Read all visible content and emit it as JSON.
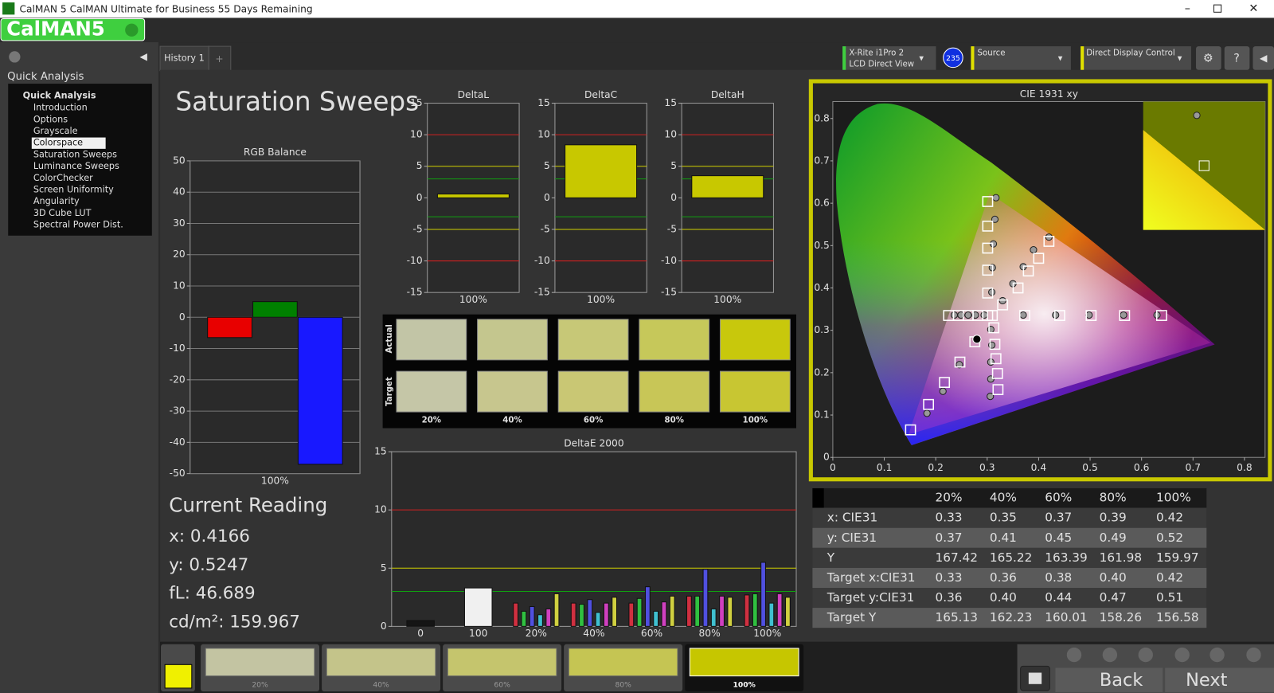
{
  "window": {
    "title": "CalMAN 5 CalMAN Ultimate for Business 55 Days Remaining",
    "logo": "CalMAN5"
  },
  "sidebar": {
    "header": "Quick Analysis",
    "root": "Quick Analysis",
    "selected": 3,
    "items": [
      "Introduction",
      "Options",
      "Grayscale",
      "Colorspace",
      "Saturation Sweeps",
      "Luminance Sweeps",
      "ColorChecker",
      "Screen Uniformity",
      "Angularity",
      "3D Cube LUT",
      "Spectral Power Dist."
    ]
  },
  "tabs": [
    "History 1",
    "+"
  ],
  "toolbar": {
    "meter": "X-Rite i1Pro 2",
    "mode": "LCD Direct View",
    "badge": "235",
    "source": "Source",
    "control": "Direct Display Control"
  },
  "page_title": "Saturation Sweeps",
  "chart_data": [
    {
      "type": "bar",
      "title": "RGB Balance",
      "categories": [
        "100%"
      ],
      "series": [
        {
          "color": "#e80000",
          "values": [
            -6.5
          ]
        },
        {
          "color": "#008000",
          "values": [
            5
          ]
        },
        {
          "color": "#1818ff",
          "values": [
            -47
          ]
        }
      ],
      "ylim": [
        -50,
        50
      ],
      "yticks": [
        -50,
        -40,
        -30,
        -20,
        -10,
        0,
        10,
        20,
        30,
        40,
        50
      ],
      "grid": true
    },
    {
      "type": "bar",
      "title": "DeltaL",
      "categories": [
        "100%"
      ],
      "values": [
        0.6
      ],
      "color": "#c8c800",
      "ylim": [
        -15,
        15
      ],
      "yticks": [
        -15,
        -10,
        -5,
        0,
        5,
        10,
        15
      ],
      "reference_lines": [
        {
          "value": 10,
          "color": "#d02020"
        },
        {
          "value": -10,
          "color": "#d02020"
        },
        {
          "value": 5,
          "color": "#d0d000"
        },
        {
          "value": -5,
          "color": "#d0d000"
        },
        {
          "value": 3,
          "color": "#10a010"
        },
        {
          "value": -3,
          "color": "#10a010"
        }
      ]
    },
    {
      "type": "bar",
      "title": "DeltaC",
      "categories": [
        "100%"
      ],
      "values": [
        8.4
      ],
      "color": "#c8c800",
      "ylim": [
        -15,
        15
      ],
      "yticks": [
        -15,
        -10,
        -5,
        0,
        5,
        10,
        15
      ],
      "reference_lines": [
        {
          "value": 10,
          "color": "#d02020"
        },
        {
          "value": -10,
          "color": "#d02020"
        },
        {
          "value": 5,
          "color": "#d0d000"
        },
        {
          "value": -5,
          "color": "#d0d000"
        },
        {
          "value": 3,
          "color": "#10a010"
        },
        {
          "value": -3,
          "color": "#10a010"
        }
      ]
    },
    {
      "type": "bar",
      "title": "DeltaH",
      "categories": [
        "100%"
      ],
      "values": [
        3.5
      ],
      "color": "#c8c800",
      "ylim": [
        -15,
        15
      ],
      "yticks": [
        -15,
        -10,
        -5,
        0,
        5,
        10,
        15
      ],
      "reference_lines": [
        {
          "value": 10,
          "color": "#d02020"
        },
        {
          "value": -10,
          "color": "#d02020"
        },
        {
          "value": 5,
          "color": "#d0d000"
        },
        {
          "value": -5,
          "color": "#d0d000"
        },
        {
          "value": 3,
          "color": "#10a010"
        },
        {
          "value": -3,
          "color": "#10a010"
        }
      ]
    },
    {
      "type": "bar",
      "title": "DeltaE 2000",
      "categories": [
        "0",
        "100",
        "20%",
        "40%",
        "60%",
        "80%",
        "100%"
      ],
      "series": [
        {
          "color": "#151515",
          "values": [
            0.5,
            null,
            null,
            null,
            null,
            null,
            null
          ]
        },
        {
          "color": "#f0f0f0",
          "values": [
            null,
            3.3,
            null,
            null,
            null,
            null,
            null
          ]
        },
        {
          "color": "#d03040",
          "values": [
            null,
            null,
            2.0,
            2.0,
            2.0,
            2.6,
            2.7
          ]
        },
        {
          "color": "#30c040",
          "values": [
            null,
            null,
            1.3,
            1.9,
            2.4,
            2.6,
            2.8
          ]
        },
        {
          "color": "#5050e0",
          "values": [
            null,
            null,
            1.7,
            2.3,
            3.4,
            4.9,
            5.5
          ]
        },
        {
          "color": "#40c0d0",
          "values": [
            null,
            null,
            1.0,
            1.2,
            1.3,
            1.5,
            2.0
          ]
        },
        {
          "color": "#d040c0",
          "values": [
            null,
            null,
            1.5,
            2.0,
            2.1,
            2.6,
            2.8
          ]
        },
        {
          "color": "#d0d040",
          "values": [
            null,
            null,
            2.8,
            2.5,
            2.6,
            2.5,
            2.5
          ]
        }
      ],
      "ylim": [
        0,
        15
      ],
      "yticks": [
        0,
        5,
        10,
        15
      ],
      "reference_lines": [
        {
          "value": 10,
          "color": "#d02020"
        },
        {
          "value": 5,
          "color": "#d0d000"
        },
        {
          "value": 3,
          "color": "#10a010"
        }
      ]
    },
    {
      "type": "scatter",
      "title": "CIE 1931 xy",
      "xlim": [
        0,
        0.84
      ],
      "ylim": [
        0,
        0.84
      ],
      "xticks": [
        0,
        0.1,
        0.2,
        0.3,
        0.4,
        0.5,
        0.6,
        0.7,
        0.8
      ],
      "yticks": [
        0,
        0.1,
        0.2,
        0.3,
        0.4,
        0.5,
        0.6,
        0.7,
        0.8
      ],
      "series": [
        {
          "marker": "circle",
          "color": "#999999",
          "x": [
            0.37,
            0.433,
            0.498,
            0.565,
            0.63,
            0.317,
            0.315,
            0.312,
            0.31,
            0.309,
            0.183,
            0.214,
            0.246,
            0.236,
            0.249,
            0.263,
            0.277,
            0.294,
            0.306,
            0.307,
            0.307,
            0.309,
            0.307,
            0.33,
            0.35,
            0.37,
            0.39,
            0.42
          ],
          "values": [
            0.336,
            0.336,
            0.336,
            0.336,
            0.336,
            0.613,
            0.562,
            0.504,
            0.448,
            0.39,
            0.104,
            0.156,
            0.219,
            0.336,
            0.336,
            0.336,
            0.336,
            0.336,
            0.144,
            0.185,
            0.225,
            0.265,
            0.302,
            0.37,
            0.41,
            0.45,
            0.49,
            0.52
          ]
        },
        {
          "marker": "square",
          "color": "#ffffff",
          "x": [
            0.373,
            0.441,
            0.502,
            0.567,
            0.639,
            0.301,
            0.301,
            0.301,
            0.301,
            0.301,
            0.151,
            0.186,
            0.217,
            0.247,
            0.276,
            0.225,
            0.244,
            0.263,
            0.282,
            0.301,
            0.321,
            0.32,
            0.317,
            0.315,
            0.313,
            0.33,
            0.36,
            0.38,
            0.4,
            0.42,
            0.31
          ],
          "values": [
            0.335,
            0.335,
            0.335,
            0.335,
            0.335,
            0.604,
            0.546,
            0.494,
            0.442,
            0.388,
            0.065,
            0.125,
            0.177,
            0.225,
            0.273,
            0.335,
            0.335,
            0.335,
            0.335,
            0.335,
            0.16,
            0.198,
            0.233,
            0.267,
            0.306,
            0.36,
            0.4,
            0.44,
            0.47,
            0.51,
            0.335
          ]
        },
        {
          "marker": "dot",
          "color": "#000000",
          "x": [
            0.28
          ],
          "values": [
            0.279
          ]
        }
      ]
    }
  ],
  "swatches": {
    "rows": [
      "Actual",
      "Target"
    ],
    "categories": [
      "20%",
      "40%",
      "60%",
      "80%",
      "100%"
    ],
    "actual_colors": [
      "#c2c5a6",
      "#c4c68e",
      "#c7c877",
      "#c6c85a",
      "#c8c80c"
    ],
    "target_colors": [
      "#c5c6a7",
      "#c7c68e",
      "#c9c774",
      "#c8c657",
      "#c8c632"
    ]
  },
  "current_reading": {
    "title": "Current Reading",
    "lines": [
      "x: 0.4166",
      "y: 0.5247",
      "fL: 46.689",
      "cd/m²: 159.967"
    ]
  },
  "table": {
    "header": [
      "20%",
      "40%",
      "60%",
      "80%",
      "100%"
    ],
    "rows": [
      [
        "x: CIE31",
        "0.33",
        "0.35",
        "0.37",
        "0.39",
        "0.42"
      ],
      [
        "y: CIE31",
        "0.37",
        "0.41",
        "0.45",
        "0.49",
        "0.52"
      ],
      [
        "Y",
        "167.42",
        "165.22",
        "163.39",
        "161.98",
        "159.97"
      ],
      [
        "Target x:CIE31",
        "0.33",
        "0.36",
        "0.38",
        "0.40",
        "0.42"
      ],
      [
        "Target y:CIE31",
        "0.36",
        "0.40",
        "0.44",
        "0.47",
        "0.51"
      ],
      [
        "Target Y",
        "165.13",
        "162.23",
        "160.01",
        "158.26",
        "156.58"
      ]
    ]
  },
  "bottom": {
    "swatches": [
      "20%",
      "40%",
      "60%",
      "80%",
      "100%"
    ],
    "colors": [
      "#c3c4a2",
      "#c4c48a",
      "#c5c56d",
      "#c5c553",
      "#c6c600"
    ],
    "back": "Back",
    "next": "Next"
  }
}
